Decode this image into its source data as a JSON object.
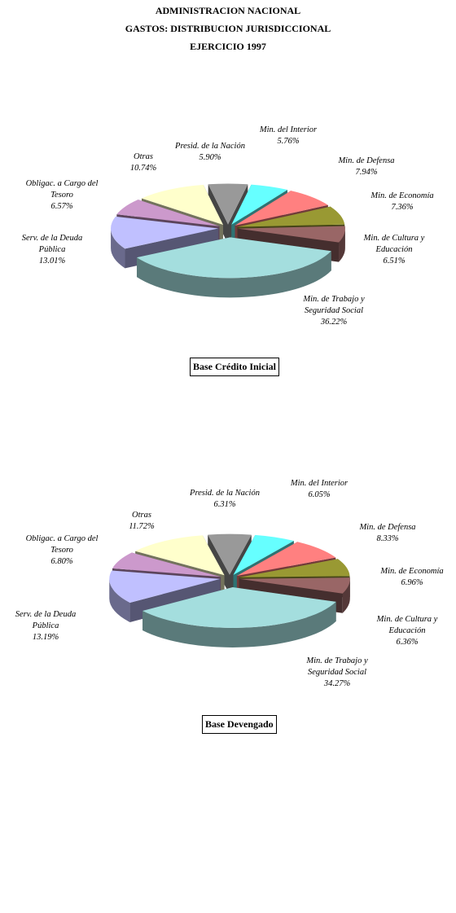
{
  "header": {
    "line1": "ADMINISTRACION NACIONAL",
    "line2": "GASTOS: DISTRIBUCION JURISDICCIONAL",
    "line3": "EJERCICIO 1997"
  },
  "chart_data": [
    {
      "type": "pie",
      "title": "Base Crédito Inicial",
      "unit": "%",
      "slices": [
        {
          "label": [
            "Presid. de la Nación"
          ],
          "value": 5.9,
          "value_text": "5.90%",
          "color": "#999999"
        },
        {
          "label": [
            "Min. del Interior"
          ],
          "value": 5.76,
          "value_text": "5.76%",
          "color": "#66ffff"
        },
        {
          "label": [
            "Min. de Defensa"
          ],
          "value": 7.94,
          "value_text": "7.94%",
          "color": "#ff8080"
        },
        {
          "label": [
            "Min. de Economía"
          ],
          "value": 7.36,
          "value_text": "7.36%",
          "color": "#999933"
        },
        {
          "label": [
            "Min. de Cultura y",
            "Educación"
          ],
          "value": 6.51,
          "value_text": "6.51%",
          "color": "#996666"
        },
        {
          "label": [
            "Min. de Trabajo y",
            "Seguridad Social"
          ],
          "value": 36.22,
          "value_text": "36.22%",
          "color": "#a4dede"
        },
        {
          "label": [
            "Serv. de la Deuda",
            "Pública"
          ],
          "value": 13.01,
          "value_text": "13.01%",
          "color": "#c0c0ff"
        },
        {
          "label": [
            "Obligac. a Cargo del",
            "Tesoro"
          ],
          "value": 6.57,
          "value_text": "6.57%",
          "color": "#cc99cc"
        },
        {
          "label": [
            "Otras"
          ],
          "value": 10.74,
          "value_text": "10.74%",
          "color": "#ffffcc"
        }
      ]
    },
    {
      "type": "pie",
      "title": "Base Devengado",
      "unit": "%",
      "slices": [
        {
          "label": [
            "Presid. de la Nación"
          ],
          "value": 6.31,
          "value_text": "6.31%",
          "color": "#999999"
        },
        {
          "label": [
            "Min. del Interior"
          ],
          "value": 6.05,
          "value_text": "6.05%",
          "color": "#66ffff"
        },
        {
          "label": [
            "Min. de Defensa"
          ],
          "value": 8.33,
          "value_text": "8.33%",
          "color": "#ff8080"
        },
        {
          "label": [
            "Min. de Economía"
          ],
          "value": 6.96,
          "value_text": "6.96%",
          "color": "#999933"
        },
        {
          "label": [
            "Min. de Cultura y",
            "Educación"
          ],
          "value": 6.36,
          "value_text": "6.36%",
          "color": "#996666"
        },
        {
          "label": [
            "Min. de Trabajo y",
            "Seguridad Social"
          ],
          "value": 34.27,
          "value_text": "34.27%",
          "color": "#a4dede"
        },
        {
          "label": [
            "Serv. de la Deuda",
            "Pública"
          ],
          "value": 13.19,
          "value_text": "13.19%",
          "color": "#c0c0ff"
        },
        {
          "label": [
            "Obligac. a Cargo del",
            "Tesoro"
          ],
          "value": 6.8,
          "value_text": "6.80%",
          "color": "#cc99cc"
        },
        {
          "label": [
            "Otras"
          ],
          "value": 11.72,
          "value_text": "11.72%",
          "color": "#ffffcc"
        }
      ]
    }
  ]
}
